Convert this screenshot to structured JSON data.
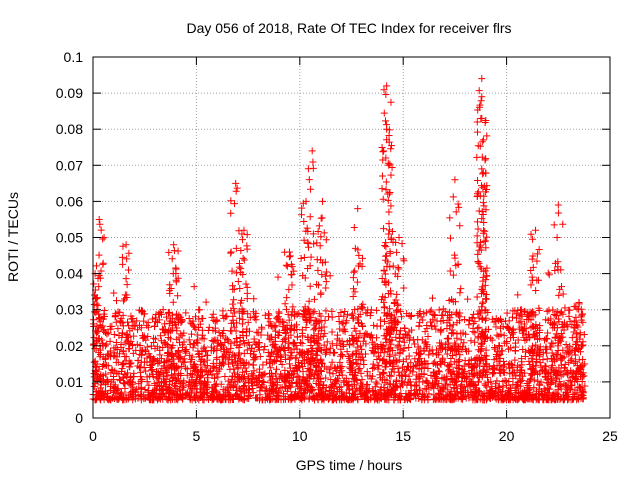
{
  "chart_data": {
    "type": "scatter",
    "title": "Day 056 of 2018, Rate Of TEC Index for receiver flrs",
    "xlabel": "GPS time / hours",
    "ylabel": "ROTI / TECUs",
    "xlim": [
      0,
      25
    ],
    "ylim": [
      0,
      0.1
    ],
    "x_ticks": [
      "0",
      "5",
      "10",
      "15",
      "20",
      "25"
    ],
    "y_ticks": [
      "0",
      "0.01",
      "0.02",
      "0.03",
      "0.04",
      "0.05",
      "0.06",
      "0.07",
      "0.08",
      "0.09",
      "0.1"
    ],
    "grid": true,
    "marker": "+",
    "color": "#ff0000",
    "series": [
      {
        "x_range": [
          0,
          23.8
        ],
        "typical_range": [
          0.005,
          0.03
        ],
        "peaks": [
          {
            "x": 0.3,
            "y": 0.055
          },
          {
            "x": 0.1,
            "y": 0.04
          },
          {
            "x": 1.6,
            "y": 0.048
          },
          {
            "x": 3.9,
            "y": 0.048
          },
          {
            "x": 6.9,
            "y": 0.065
          },
          {
            "x": 7.3,
            "y": 0.052
          },
          {
            "x": 9.5,
            "y": 0.046
          },
          {
            "x": 10.3,
            "y": 0.06
          },
          {
            "x": 10.6,
            "y": 0.074
          },
          {
            "x": 11.1,
            "y": 0.06
          },
          {
            "x": 12.8,
            "y": 0.058
          },
          {
            "x": 14.2,
            "y": 0.092
          },
          {
            "x": 14.2,
            "y": 0.08
          },
          {
            "x": 14.3,
            "y": 0.07
          },
          {
            "x": 14.8,
            "y": 0.05
          },
          {
            "x": 17.5,
            "y": 0.066
          },
          {
            "x": 18.8,
            "y": 0.094
          },
          {
            "x": 18.8,
            "y": 0.089
          },
          {
            "x": 18.8,
            "y": 0.083
          },
          {
            "x": 18.8,
            "y": 0.069
          },
          {
            "x": 21.4,
            "y": 0.052
          },
          {
            "x": 22.5,
            "y": 0.059
          },
          {
            "x": 23.5,
            "y": 0.032
          }
        ]
      }
    ]
  }
}
